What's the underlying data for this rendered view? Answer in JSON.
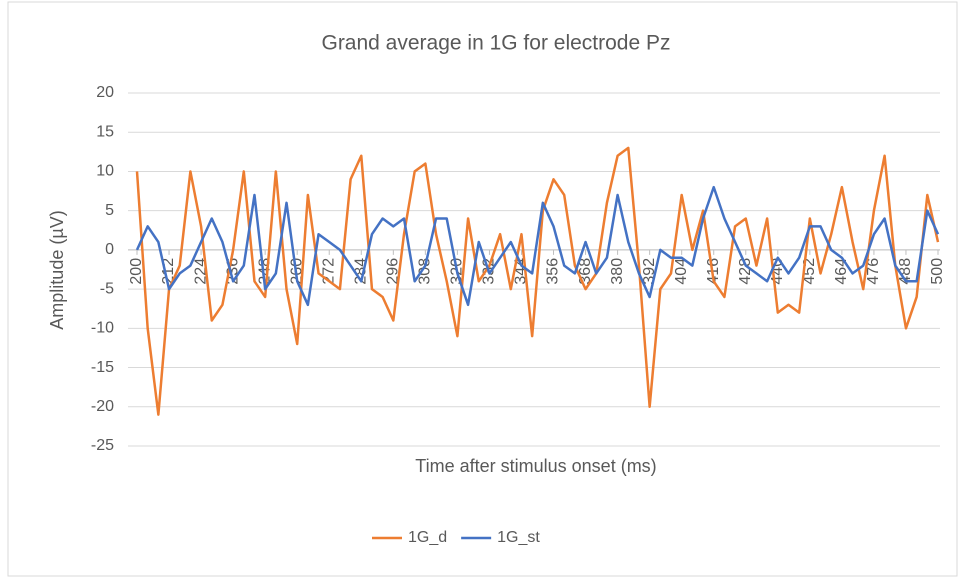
{
  "chart_data": {
    "type": "line",
    "title": "Grand average in 1G for electrode Pz",
    "x_label": "Time after stimulus onset (ms)",
    "y_label": "Amplitude (µV)",
    "x": [
      200,
      204,
      208,
      212,
      216,
      220,
      224,
      228,
      232,
      236,
      240,
      244,
      248,
      252,
      256,
      260,
      264,
      268,
      272,
      276,
      280,
      284,
      288,
      292,
      296,
      300,
      304,
      308,
      312,
      316,
      320,
      324,
      328,
      332,
      336,
      340,
      344,
      348,
      352,
      356,
      360,
      364,
      368,
      372,
      376,
      380,
      384,
      388,
      392,
      396,
      400,
      404,
      408,
      412,
      416,
      420,
      424,
      428,
      432,
      436,
      440,
      444,
      448,
      452,
      456,
      460,
      464,
      468,
      472,
      476,
      480,
      484,
      488,
      492,
      496,
      500
    ],
    "series": [
      {
        "name": "1G_d",
        "color": "#ed7d31",
        "values": [
          10,
          -10,
          -21,
          -5,
          -2,
          10,
          3,
          -9,
          -7,
          0,
          10,
          -4,
          -6,
          10,
          -5,
          -12,
          7,
          -3,
          -4,
          -5,
          9,
          12,
          -5,
          -6,
          -9,
          2,
          10,
          11,
          2,
          -4,
          -11,
          4,
          -4,
          -2,
          2,
          -5,
          2,
          -11,
          5,
          9,
          7,
          -2,
          -5,
          -3,
          6,
          12,
          13,
          -2,
          -20,
          -5,
          -3,
          7,
          0,
          5,
          -4,
          -6,
          3,
          4,
          -2,
          4,
          -8,
          -7,
          -8,
          4,
          -3,
          2,
          8,
          1,
          -5,
          5,
          12,
          -2,
          -10,
          -6,
          7,
          1
        ]
      },
      {
        "name": "1G_st",
        "color": "#4472c4",
        "values": [
          0,
          3,
          1,
          -5,
          -3,
          -2,
          1,
          4,
          1,
          -4,
          -2,
          7,
          -5,
          -3,
          6,
          -4,
          -7,
          2,
          1,
          0,
          -2,
          -4,
          2,
          4,
          3,
          4,
          -4,
          -2,
          4,
          4,
          -3,
          -7,
          1,
          -3,
          -1,
          1,
          -2,
          -3,
          6,
          3,
          -2,
          -3,
          1,
          -3,
          -1,
          7,
          1,
          -3,
          -6,
          0,
          -1,
          -1,
          -2,
          4,
          8,
          4,
          1,
          -2,
          -3,
          -4,
          -1,
          -3,
          -1,
          3,
          3,
          0,
          -1,
          -3,
          -2,
          2,
          4,
          -2,
          -4,
          -4,
          5,
          2
        ]
      }
    ],
    "xlim": [
      200,
      500
    ],
    "xticks": [
      200,
      212,
      224,
      236,
      248,
      260,
      272,
      284,
      296,
      308,
      320,
      332,
      344,
      356,
      368,
      380,
      392,
      404,
      416,
      428,
      440,
      452,
      464,
      476,
      488,
      500
    ],
    "ylim": [
      -25,
      20
    ],
    "yticks": [
      -25,
      -20,
      -15,
      -10,
      -5,
      0,
      5,
      10,
      15,
      20
    ],
    "grid": true,
    "legend": "bottom"
  }
}
